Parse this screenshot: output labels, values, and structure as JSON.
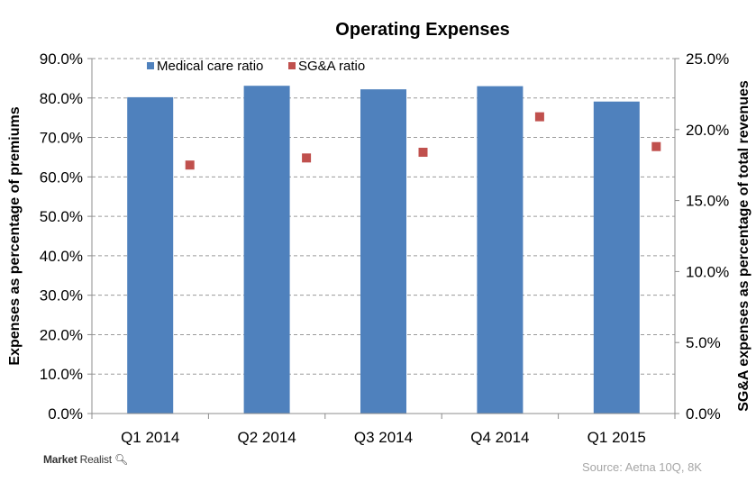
{
  "chart_data": {
    "type": "bar",
    "title": "Operating Expenses",
    "categories": [
      "Q1 2014",
      "Q2 2014",
      "Q3 2014",
      "Q4 2014",
      "Q1 2015"
    ],
    "series": [
      {
        "name": "Medical care ratio",
        "kind": "bar",
        "axis": "left",
        "color": "#4F81BD",
        "values": [
          80.2,
          83.1,
          82.2,
          83.0,
          79.1
        ]
      },
      {
        "name": "SG&A ratio",
        "kind": "marker",
        "axis": "right",
        "color": "#C0504D",
        "values": [
          17.5,
          18.0,
          18.4,
          20.9,
          18.8
        ]
      }
    ],
    "ylabel": "Expenses as percentage of premiums",
    "y2label": "SG&A expenses as percentage of total revenues",
    "ylim": [
      0,
      90
    ],
    "y2lim": [
      0,
      25
    ],
    "yticks": [
      "0.0%",
      "10.0%",
      "20.0%",
      "30.0%",
      "40.0%",
      "50.0%",
      "60.0%",
      "70.0%",
      "80.0%",
      "90.0%"
    ],
    "y2ticks": [
      "0.0%",
      "5.0%",
      "10.0%",
      "15.0%",
      "20.0%",
      "25.0%"
    ],
    "grid": true,
    "legend_position": "top"
  },
  "branding": {
    "logo_text": "Market Realist"
  },
  "source": "Source: Aetna 10Q, 8K"
}
